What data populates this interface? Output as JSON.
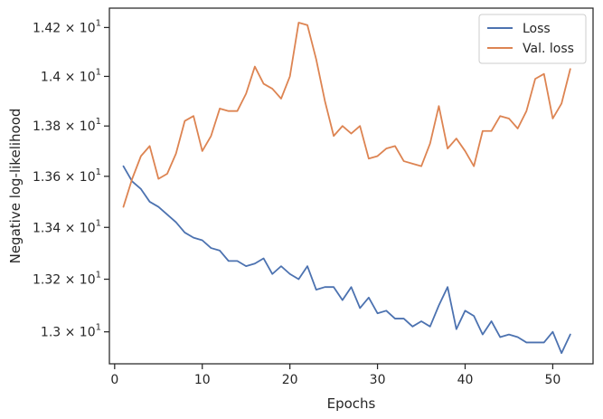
{
  "chart_data": {
    "type": "line",
    "xlabel": "Epochs",
    "ylabel": "Negative log-likelihood",
    "xlim": [
      -0.6,
      54.6
    ],
    "ylim": [
      12.88,
      14.28
    ],
    "y_scale": "log",
    "grid": false,
    "legend_position": "top-right",
    "x_ticks": [
      {
        "value": 0,
        "label": "0"
      },
      {
        "value": 10,
        "label": "10"
      },
      {
        "value": 20,
        "label": "20"
      },
      {
        "value": 30,
        "label": "30"
      },
      {
        "value": 40,
        "label": "40"
      },
      {
        "value": 50,
        "label": "50"
      }
    ],
    "y_ticks": [
      {
        "value": 13.0,
        "mantissa": "1.3",
        "times": "×",
        "base": "10",
        "exp": "1"
      },
      {
        "value": 13.2,
        "mantissa": "1.32",
        "times": "×",
        "base": "10",
        "exp": "1"
      },
      {
        "value": 13.4,
        "mantissa": "1.34",
        "times": "×",
        "base": "10",
        "exp": "1"
      },
      {
        "value": 13.6,
        "mantissa": "1.36",
        "times": "×",
        "base": "10",
        "exp": "1"
      },
      {
        "value": 13.8,
        "mantissa": "1.38",
        "times": "×",
        "base": "10",
        "exp": "1"
      },
      {
        "value": 14.0,
        "mantissa": "1.4",
        "times": "×",
        "base": "10",
        "exp": "1"
      },
      {
        "value": 14.2,
        "mantissa": "1.42",
        "times": "×",
        "base": "10",
        "exp": "1"
      }
    ],
    "x": [
      1,
      2,
      3,
      4,
      5,
      6,
      7,
      8,
      9,
      10,
      11,
      12,
      13,
      14,
      15,
      16,
      17,
      18,
      19,
      20,
      21,
      22,
      23,
      24,
      25,
      26,
      27,
      28,
      29,
      30,
      31,
      32,
      33,
      34,
      35,
      36,
      37,
      38,
      39,
      40,
      41,
      42,
      43,
      44,
      45,
      46,
      47,
      48,
      49,
      50,
      51,
      52
    ],
    "series": [
      {
        "name": "Loss",
        "color": "#4c72b0",
        "values": [
          13.64,
          13.58,
          13.55,
          13.5,
          13.48,
          13.45,
          13.42,
          13.38,
          13.36,
          13.35,
          13.32,
          13.31,
          13.27,
          13.27,
          13.25,
          13.26,
          13.28,
          13.22,
          13.25,
          13.22,
          13.2,
          13.25,
          13.16,
          13.17,
          13.17,
          13.12,
          13.17,
          13.09,
          13.13,
          13.07,
          13.08,
          13.05,
          13.05,
          13.02,
          13.04,
          13.02,
          13.1,
          13.17,
          13.01,
          13.08,
          13.06,
          12.99,
          13.04,
          12.98,
          12.99,
          12.98,
          12.96,
          12.96,
          12.96,
          13.0,
          12.92,
          12.99
        ]
      },
      {
        "name": "Val. loss",
        "color": "#dd8452",
        "values": [
          13.48,
          13.59,
          13.68,
          13.72,
          13.59,
          13.61,
          13.69,
          13.82,
          13.84,
          13.7,
          13.76,
          13.87,
          13.86,
          13.86,
          13.93,
          14.04,
          13.97,
          13.95,
          13.91,
          14.0,
          14.22,
          14.21,
          14.07,
          13.9,
          13.76,
          13.8,
          13.77,
          13.8,
          13.67,
          13.68,
          13.71,
          13.72,
          13.66,
          13.65,
          13.64,
          13.73,
          13.88,
          13.71,
          13.75,
          13.7,
          13.64,
          13.78,
          13.78,
          13.84,
          13.83,
          13.79,
          13.86,
          13.99,
          14.01,
          13.83,
          13.89,
          14.03
        ]
      }
    ]
  }
}
